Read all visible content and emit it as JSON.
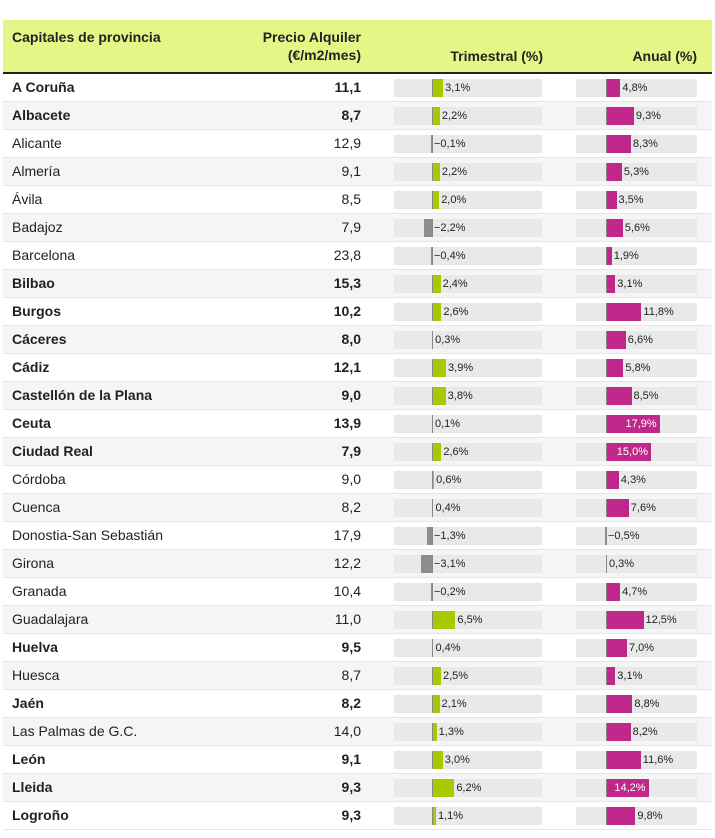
{
  "chart_data": {
    "type": "table",
    "columns": {
      "city": "Capitales de provincia",
      "price": "Precio Alquiler (€/m2/mes)",
      "quarterly": "Trimestral (%)",
      "annual": "Anual (%)"
    },
    "colors": {
      "header_bg": "#e4f686",
      "quarterly_positive": "#a8c800",
      "quarterly_negative": "#8c8c8c",
      "annual_positive": "#c0278a",
      "annual_negative": "#8c8c8c"
    },
    "rows": [
      {
        "city": "A Coruña",
        "price": "11,1",
        "quarterly": 3.1,
        "quarterly_label": "3,1%",
        "annual": 4.8,
        "annual_label": "4,8%",
        "bold": true
      },
      {
        "city": "Albacete",
        "price": "8,7",
        "quarterly": 2.2,
        "quarterly_label": "2,2%",
        "annual": 9.3,
        "annual_label": "9,3%",
        "bold": true
      },
      {
        "city": "Alicante",
        "price": "12,9",
        "quarterly": -0.1,
        "quarterly_label": "−0,1%",
        "annual": 8.3,
        "annual_label": "8,3%",
        "bold": false
      },
      {
        "city": "Almería",
        "price": "9,1",
        "quarterly": 2.2,
        "quarterly_label": "2,2%",
        "annual": 5.3,
        "annual_label": "5,3%",
        "bold": false
      },
      {
        "city": "Ávila",
        "price": "8,5",
        "quarterly": 2.0,
        "quarterly_label": "2,0%",
        "annual": 3.5,
        "annual_label": "3,5%",
        "bold": false
      },
      {
        "city": "Badajoz",
        "price": "7,9",
        "quarterly": -2.2,
        "quarterly_label": "−2,2%",
        "annual": 5.6,
        "annual_label": "5,6%",
        "bold": false
      },
      {
        "city": "Barcelona",
        "price": "23,8",
        "quarterly": -0.4,
        "quarterly_label": "−0,4%",
        "annual": 1.9,
        "annual_label": "1,9%",
        "bold": false
      },
      {
        "city": "Bilbao",
        "price": "15,3",
        "quarterly": 2.4,
        "quarterly_label": "2,4%",
        "annual": 3.1,
        "annual_label": "3,1%",
        "bold": true
      },
      {
        "city": "Burgos",
        "price": "10,2",
        "quarterly": 2.6,
        "quarterly_label": "2,6%",
        "annual": 11.8,
        "annual_label": "11,8%",
        "bold": true
      },
      {
        "city": "Cáceres",
        "price": "8,0",
        "quarterly": 0.3,
        "quarterly_label": "0,3%",
        "annual": 6.6,
        "annual_label": "6,6%",
        "bold": true
      },
      {
        "city": "Cádiz",
        "price": "12,1",
        "quarterly": 3.9,
        "quarterly_label": "3,9%",
        "annual": 5.8,
        "annual_label": "5,8%",
        "bold": true
      },
      {
        "city": "Castellón de la Plana",
        "price": "9,0",
        "quarterly": 3.8,
        "quarterly_label": "3,8%",
        "annual": 8.5,
        "annual_label": "8,5%",
        "bold": true
      },
      {
        "city": "Ceuta",
        "price": "13,9",
        "quarterly": 0.1,
        "quarterly_label": "0,1%",
        "annual": 17.9,
        "annual_label": "17,9%",
        "bold": true
      },
      {
        "city": "Ciudad Real",
        "price": "7,9",
        "quarterly": 2.6,
        "quarterly_label": "2,6%",
        "annual": 15.0,
        "annual_label": "15,0%",
        "bold": true
      },
      {
        "city": "Córdoba",
        "price": "9,0",
        "quarterly": 0.6,
        "quarterly_label": "0,6%",
        "annual": 4.3,
        "annual_label": "4,3%",
        "bold": false
      },
      {
        "city": "Cuenca",
        "price": "8,2",
        "quarterly": 0.4,
        "quarterly_label": "0,4%",
        "annual": 7.6,
        "annual_label": "7,6%",
        "bold": false
      },
      {
        "city": "Donostia-San Sebastián",
        "price": "17,9",
        "quarterly": -1.3,
        "quarterly_label": "−1,3%",
        "annual": -0.5,
        "annual_label": "−0,5%",
        "bold": false
      },
      {
        "city": "Girona",
        "price": "12,2",
        "quarterly": -3.1,
        "quarterly_label": "−3,1%",
        "annual": 0.3,
        "annual_label": "0,3%",
        "bold": false
      },
      {
        "city": "Granada",
        "price": "10,4",
        "quarterly": -0.2,
        "quarterly_label": "−0,2%",
        "annual": 4.7,
        "annual_label": "4,7%",
        "bold": false
      },
      {
        "city": "Guadalajara",
        "price": "11,0",
        "quarterly": 6.5,
        "quarterly_label": "6,5%",
        "annual": 12.5,
        "annual_label": "12,5%",
        "bold": false
      },
      {
        "city": "Huelva",
        "price": "9,5",
        "quarterly": 0.4,
        "quarterly_label": "0,4%",
        "annual": 7.0,
        "annual_label": "7,0%",
        "bold": true
      },
      {
        "city": "Huesca",
        "price": "8,7",
        "quarterly": 2.5,
        "quarterly_label": "2,5%",
        "annual": 3.1,
        "annual_label": "3,1%",
        "bold": false
      },
      {
        "city": "Jaén",
        "price": "8,2",
        "quarterly": 2.1,
        "quarterly_label": "2,1%",
        "annual": 8.8,
        "annual_label": "8,8%",
        "bold": true
      },
      {
        "city": "Las Palmas de G.C.",
        "price": "14,0",
        "quarterly": 1.3,
        "quarterly_label": "1,3%",
        "annual": 8.2,
        "annual_label": "8,2%",
        "bold": false
      },
      {
        "city": "León",
        "price": "9,1",
        "quarterly": 3.0,
        "quarterly_label": "3,0%",
        "annual": 11.6,
        "annual_label": "11,6%",
        "bold": true
      },
      {
        "city": "Lleida",
        "price": "9,3",
        "quarterly": 6.2,
        "quarterly_label": "6,2%",
        "annual": 14.2,
        "annual_label": "14,2%",
        "bold": true
      },
      {
        "city": "Logroño",
        "price": "9,3",
        "quarterly": 1.1,
        "quarterly_label": "1,1%",
        "annual": 9.8,
        "annual_label": "9,8%",
        "bold": true
      }
    ]
  }
}
